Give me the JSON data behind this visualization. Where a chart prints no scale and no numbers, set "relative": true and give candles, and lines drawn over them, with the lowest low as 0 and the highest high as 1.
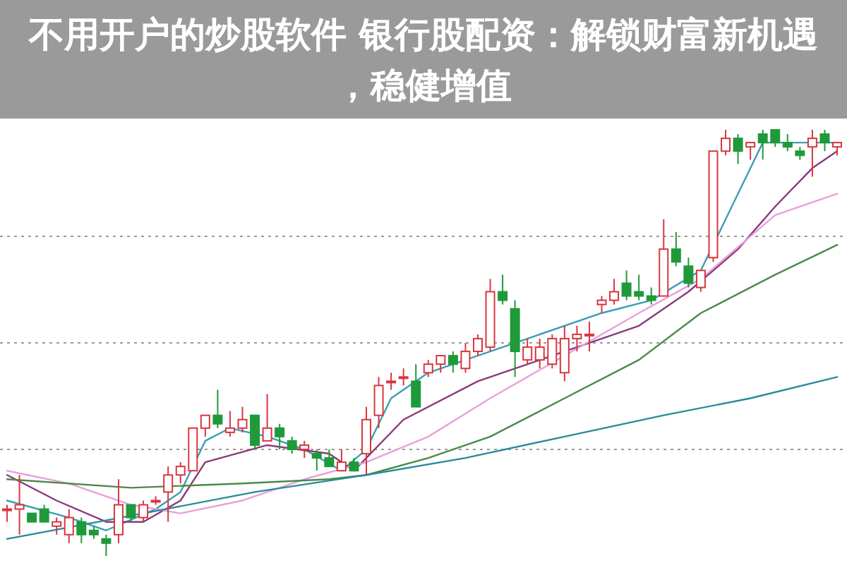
{
  "chart_data": {
    "type": "candlestick",
    "relative": true,
    "title": "不用开户的炒股软件 银行股配资：解锁财富新机遇，稳健增值",
    "categories": [
      null,
      null,
      null,
      null,
      null,
      null,
      null,
      null,
      null,
      null,
      null,
      null,
      null,
      null,
      null,
      null,
      null,
      null,
      null,
      null,
      null,
      null,
      null,
      null,
      null,
      null,
      null,
      null,
      null,
      null,
      null,
      null,
      null,
      null,
      null,
      null,
      null,
      null,
      null,
      null,
      null,
      null,
      null,
      null,
      null,
      null,
      null,
      null,
      null,
      null,
      null,
      null,
      null,
      null,
      null,
      null,
      null,
      null,
      null,
      null,
      null,
      null,
      null,
      null,
      null,
      null,
      null,
      null
    ],
    "ohlc": [
      [
        0.11,
        0.12,
        0.08,
        0.11
      ],
      [
        0.11,
        0.19,
        0.05,
        0.12
      ],
      [
        0.1,
        0.1,
        0.08,
        0.08
      ],
      [
        0.11,
        0.12,
        0.08,
        0.08
      ],
      [
        0.07,
        0.09,
        0.05,
        0.08
      ],
      [
        0.05,
        0.11,
        0.03,
        0.09
      ],
      [
        0.08,
        0.09,
        0.03,
        0.05
      ],
      [
        0.06,
        0.07,
        0.04,
        0.05
      ],
      [
        0.04,
        0.05,
        0.0,
        0.03
      ],
      [
        0.05,
        0.18,
        0.03,
        0.12
      ],
      [
        0.12,
        0.12,
        0.08,
        0.09
      ],
      [
        0.09,
        0.13,
        0.08,
        0.12
      ],
      [
        0.13,
        0.14,
        0.12,
        0.13
      ],
      [
        0.15,
        0.21,
        0.08,
        0.19
      ],
      [
        0.19,
        0.22,
        0.17,
        0.21
      ],
      [
        0.2,
        0.3,
        0.2,
        0.3
      ],
      [
        0.3,
        0.33,
        0.28,
        0.33
      ],
      [
        0.33,
        0.39,
        0.3,
        0.31
      ],
      [
        0.29,
        0.34,
        0.28,
        0.3
      ],
      [
        0.3,
        0.35,
        0.29,
        0.32
      ],
      [
        0.33,
        0.33,
        0.25,
        0.26
      ],
      [
        0.27,
        0.38,
        0.27,
        0.3
      ],
      [
        0.3,
        0.31,
        0.25,
        0.28
      ],
      [
        0.27,
        0.28,
        0.24,
        0.25
      ],
      [
        0.25,
        0.27,
        0.23,
        0.26
      ],
      [
        0.24,
        0.25,
        0.2,
        0.23
      ],
      [
        0.23,
        0.25,
        0.21,
        0.21
      ],
      [
        0.2,
        0.25,
        0.2,
        0.22
      ],
      [
        0.22,
        0.23,
        0.2,
        0.2
      ],
      [
        0.24,
        0.35,
        0.19,
        0.32
      ],
      [
        0.33,
        0.42,
        0.3,
        0.4
      ],
      [
        0.41,
        0.43,
        0.39,
        0.41
      ],
      [
        0.42,
        0.44,
        0.4,
        0.42
      ],
      [
        0.41,
        0.45,
        0.35,
        0.35
      ],
      [
        0.43,
        0.46,
        0.42,
        0.45
      ],
      [
        0.45,
        0.47,
        0.43,
        0.47
      ],
      [
        0.47,
        0.48,
        0.43,
        0.45
      ],
      [
        0.44,
        0.5,
        0.43,
        0.48
      ],
      [
        0.48,
        0.52,
        0.47,
        0.51
      ],
      [
        0.49,
        0.65,
        0.48,
        0.62
      ],
      [
        0.62,
        0.66,
        0.59,
        0.6
      ],
      [
        0.58,
        0.6,
        0.42,
        0.48
      ],
      [
        0.46,
        0.51,
        0.45,
        0.49
      ],
      [
        0.46,
        0.51,
        0.44,
        0.49
      ],
      [
        0.45,
        0.52,
        0.44,
        0.51
      ],
      [
        0.43,
        0.54,
        0.41,
        0.51
      ],
      [
        0.51,
        0.54,
        0.48,
        0.52
      ],
      [
        0.52,
        0.55,
        0.48,
        0.52
      ],
      [
        0.59,
        0.61,
        0.57,
        0.6
      ],
      [
        0.6,
        0.65,
        0.59,
        0.62
      ],
      [
        0.64,
        0.67,
        0.6,
        0.61
      ],
      [
        0.62,
        0.66,
        0.6,
        0.61
      ],
      [
        0.61,
        0.63,
        0.59,
        0.6
      ],
      [
        0.61,
        0.79,
        0.61,
        0.72
      ],
      [
        0.72,
        0.76,
        0.68,
        0.69
      ],
      [
        0.68,
        0.7,
        0.63,
        0.64
      ],
      [
        0.63,
        0.67,
        0.62,
        0.67
      ],
      [
        0.7,
        0.95,
        0.69,
        0.95
      ],
      [
        0.95,
        1.0,
        0.94,
        0.98
      ],
      [
        0.98,
        0.99,
        0.92,
        0.95
      ],
      [
        0.96,
        0.97,
        0.93,
        0.97
      ],
      [
        0.99,
        1.0,
        0.93,
        0.97
      ],
      [
        1.0,
        1.0,
        0.96,
        0.97
      ],
      [
        0.97,
        0.99,
        0.95,
        0.96
      ],
      [
        0.95,
        0.96,
        0.93,
        0.94
      ],
      [
        0.96,
        1.0,
        0.89,
        0.98
      ],
      [
        0.99,
        1.0,
        0.95,
        0.97
      ],
      [
        0.96,
        0.97,
        0.94,
        0.97
      ]
    ],
    "series": [
      {
        "type": "line",
        "color": "#3a9fb5",
        "values": [
          0.13,
          null,
          null,
          null,
          null,
          0.09,
          null,
          null,
          0.06,
          null,
          null,
          null,
          0.11,
          null,
          0.15,
          null,
          0.27,
          null,
          0.3,
          null,
          null,
          0.28,
          null,
          null,
          0.25,
          null,
          null,
          0.2,
          null,
          0.25,
          null,
          0.37,
          null,
          null,
          0.43,
          null,
          null,
          null,
          null,
          null,
          null,
          null,
          null,
          null,
          null,
          null,
          null,
          null,
          0.57,
          null,
          null,
          null,
          0.6,
          null,
          null,
          null,
          0.67,
          null,
          null,
          0.85,
          null,
          0.97,
          null,
          null,
          null,
          null,
          null,
          0.97
        ]
      },
      {
        "type": "line",
        "color": "#8b3a7a",
        "values": [
          0.19,
          null,
          null,
          null,
          0.13,
          null,
          null,
          null,
          0.08,
          null,
          null,
          0.08,
          null,
          null,
          0.13,
          null,
          0.22,
          null,
          null,
          null,
          null,
          0.26,
          null,
          null,
          null,
          null,
          0.24,
          null,
          0.2,
          null,
          null,
          null,
          0.32,
          null,
          null,
          null,
          null,
          null,
          0.41,
          null,
          null,
          null,
          null,
          null,
          null,
          0.48,
          null,
          null,
          null,
          null,
          null,
          0.54,
          null,
          null,
          null,
          0.62,
          null,
          null,
          null,
          0.72,
          null,
          null,
          0.82,
          null,
          null,
          0.91,
          null,
          0.95
        ]
      },
      {
        "type": "line",
        "color": "#e8a0dc",
        "values": [
          0.2,
          null,
          null,
          null,
          null,
          0.17,
          null,
          null,
          null,
          null,
          0.12,
          null,
          null,
          null,
          0.1,
          null,
          null,
          null,
          null,
          0.13,
          null,
          null,
          null,
          null,
          0.18,
          null,
          null,
          null,
          null,
          0.22,
          null,
          null,
          null,
          null,
          0.28,
          null,
          null,
          null,
          null,
          0.37,
          null,
          null,
          null,
          null,
          null,
          null,
          null,
          null,
          null,
          null,
          null,
          0.57,
          null,
          null,
          null,
          null,
          0.65,
          null,
          null,
          null,
          null,
          null,
          0.8,
          null,
          null,
          null,
          null,
          0.85
        ]
      },
      {
        "type": "line",
        "color": "#4a8a4a",
        "values": [
          0.18,
          null,
          null,
          null,
          null,
          null,
          null,
          null,
          null,
          null,
          0.16,
          null,
          null,
          null,
          null,
          null,
          null,
          null,
          null,
          0.17,
          null,
          null,
          null,
          null,
          null,
          null,
          0.18,
          null,
          null,
          0.19,
          null,
          null,
          null,
          null,
          0.23,
          null,
          null,
          null,
          null,
          0.28,
          null,
          null,
          null,
          null,
          null,
          0.37,
          null,
          null,
          null,
          null,
          null,
          0.46,
          null,
          null,
          null,
          null,
          0.57,
          null,
          null,
          null,
          null,
          null,
          0.66,
          null,
          null,
          null,
          null,
          0.73
        ]
      },
      {
        "type": "line",
        "color": "#2a8a9a",
        "values": [
          0.04,
          null,
          null,
          null,
          null,
          null,
          null,
          null,
          null,
          null,
          null,
          0.1,
          null,
          null,
          null,
          null,
          null,
          null,
          null,
          null,
          0.15,
          null,
          null,
          null,
          null,
          null,
          null,
          null,
          null,
          0.19,
          null,
          null,
          null,
          null,
          null,
          null,
          null,
          0.23,
          null,
          null,
          null,
          null,
          null,
          null,
          null,
          0.28,
          null,
          null,
          null,
          null,
          null,
          null,
          null,
          0.33,
          null,
          null,
          null,
          null,
          null,
          null,
          0.37,
          null,
          null,
          null,
          null,
          null,
          null,
          0.42
        ]
      }
    ],
    "ref_lines": [
      {
        "axis": "y",
        "value": 0.75,
        "color": "#999999",
        "line_style": "dotted"
      },
      {
        "axis": "y",
        "value": 0.5,
        "color": "#999999",
        "line_style": "dotted"
      },
      {
        "axis": "y",
        "value": 0.25,
        "color": "#999999",
        "line_style": "dotted"
      }
    ]
  }
}
